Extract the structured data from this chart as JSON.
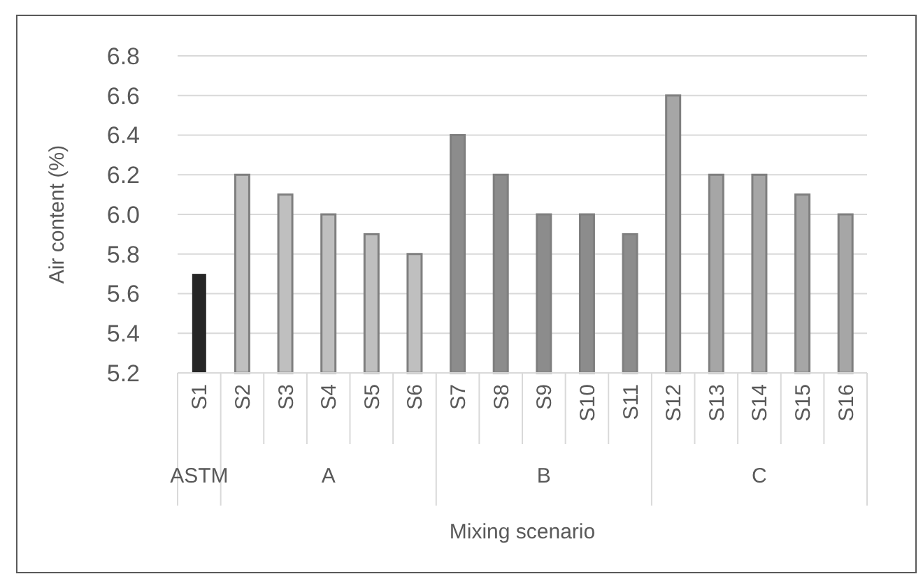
{
  "chart_data": {
    "type": "bar",
    "xlabel": "Mixing scenario",
    "ylabel": "Air content (%)",
    "categories": [
      "S1",
      "S2",
      "S3",
      "S4",
      "S5",
      "S6",
      "S7",
      "S8",
      "S9",
      "S10",
      "S11",
      "S12",
      "S13",
      "S14",
      "S15",
      "S16"
    ],
    "values": [
      5.7,
      6.2,
      6.1,
      6.0,
      5.9,
      5.8,
      6.4,
      6.2,
      6.0,
      6.0,
      5.9,
      6.6,
      6.2,
      6.2,
      6.1,
      6.0
    ],
    "colors": [
      "#262626",
      "#bfbfbf",
      "#bfbfbf",
      "#bfbfbf",
      "#bfbfbf",
      "#bfbfbf",
      "#8c8c8c",
      "#8c8c8c",
      "#8c8c8c",
      "#8c8c8c",
      "#8c8c8c",
      "#a6a6a6",
      "#a6a6a6",
      "#a6a6a6",
      "#a6a6a6",
      "#a6a6a6"
    ],
    "ylim": [
      5.2,
      6.8
    ],
    "yticks": [
      {
        "value": 5.2,
        "label": "5.2"
      },
      {
        "value": 5.4,
        "label": "5.4"
      },
      {
        "value": 5.6,
        "label": "5.6"
      },
      {
        "value": 5.8,
        "label": "5.8"
      },
      {
        "value": 6.0,
        "label": "6.0"
      },
      {
        "value": 6.2,
        "label": "6.2"
      },
      {
        "value": 6.4,
        "label": "6.4"
      },
      {
        "value": 6.6,
        "label": "6.6"
      },
      {
        "value": 6.8,
        "label": "6.8"
      }
    ],
    "grid": "y",
    "annotations": [
      "ASTM",
      "A",
      "B",
      "C"
    ]
  }
}
